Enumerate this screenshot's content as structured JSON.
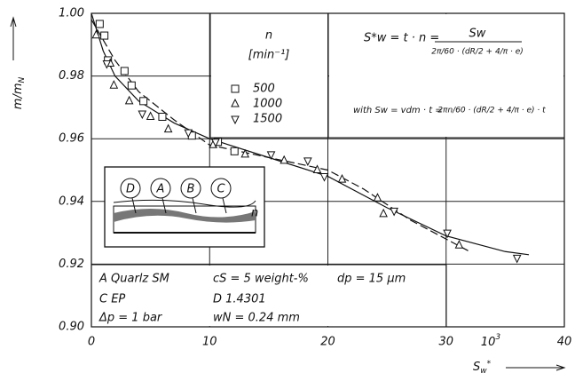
{
  "chart_data": {
    "type": "scatter",
    "ylabel": {
      "main": "m/m",
      "sub": "N"
    },
    "xlabel": {
      "main": "S",
      "sub": "w",
      "sup": "*"
    },
    "x_multiplier": {
      "base": "10",
      "exp": "3"
    },
    "xlim": [
      0,
      40
    ],
    "xticks": [
      0,
      10,
      20,
      30,
      40
    ],
    "ylim": [
      0.9,
      1.0
    ],
    "yticks": [
      {
        "value": 0.9,
        "label": "0.90"
      },
      0.92,
      0.94,
      0.96,
      0.98,
      {
        "value": 1.0,
        "label": "1.00"
      }
    ],
    "grid": true,
    "legend_title": "n",
    "legend_unit": "[min⁻¹]",
    "series": [
      {
        "name": "500",
        "marker": "square",
        "color": "#111111",
        "x": [
          0.7,
          1.1,
          1.4,
          2.8,
          3.4,
          4.4,
          6.0,
          8.5,
          10.7,
          12.1
        ],
        "values": [
          0.9966,
          0.9929,
          0.985,
          0.9816,
          0.977,
          0.972,
          0.967,
          0.961,
          0.959,
          0.956
        ]
      },
      {
        "name": "1000",
        "marker": "triangle-up",
        "color": "#111111",
        "x": [
          0.4,
          1.6,
          1.9,
          3.2,
          5.0,
          6.5,
          10.3,
          13.0,
          16.3,
          19.1,
          21.2,
          24.2,
          24.7,
          31.1
        ],
        "values": [
          0.993,
          0.984,
          0.977,
          0.972,
          0.967,
          0.963,
          0.958,
          0.955,
          0.953,
          0.95,
          0.947,
          0.941,
          0.936,
          0.926
        ]
      },
      {
        "name": "1500",
        "marker": "triangle-down",
        "color": "#111111",
        "x": [
          1.3,
          4.3,
          8.2,
          10.5,
          15.2,
          18.3,
          19.7,
          25.6,
          30.1,
          36.0
        ],
        "values": [
          0.984,
          0.968,
          0.962,
          0.959,
          0.955,
          0.953,
          0.948,
          0.937,
          0.93,
          0.922
        ]
      }
    ],
    "curves": [
      {
        "style": "solid",
        "x": [
          0,
          1,
          2,
          4,
          7,
          10,
          15,
          20,
          25,
          30,
          35,
          37
        ],
        "values": [
          1.0,
          0.988,
          0.98,
          0.972,
          0.965,
          0.96,
          0.954,
          0.948,
          0.938,
          0.929,
          0.924,
          0.923
        ]
      },
      {
        "style": "dashed",
        "x": [
          0,
          2,
          4,
          7,
          10,
          15,
          20,
          23,
          27,
          32
        ],
        "values": [
          0.998,
          0.985,
          0.975,
          0.966,
          0.958,
          0.954,
          0.95,
          0.944,
          0.934,
          0.924
        ]
      }
    ],
    "formula1": {
      "lhs": "S*w = t · n =",
      "num": "Sw",
      "den": "2π/60 · (dR/2 + 4/π · e)"
    },
    "formula2": {
      "lhs": "with   Sw = vdm · t =",
      "num": "2πn/60 · (dR/2 + 4/π · e) · t"
    },
    "inset": {
      "labels": [
        "D",
        "A",
        "B",
        "C"
      ],
      "side": "n"
    },
    "info": [
      "A   Quarlz SM",
      "cS = 5 weight-%",
      "dp = 15 µm",
      "C    EP",
      "D    1.4301",
      "Δp = 1 bar",
      "wN = 0.24 mm"
    ]
  }
}
